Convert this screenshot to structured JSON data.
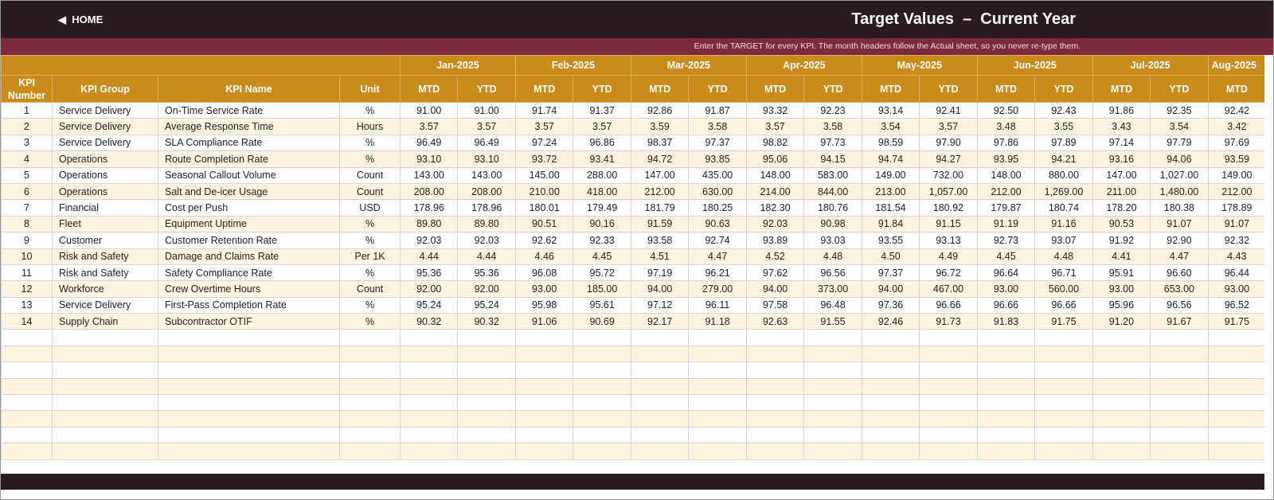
{
  "header": {
    "home": "HOME",
    "title": "Target Values  –  Current Year",
    "subtitle": "Enter the TARGET for every KPI. The month headers follow the Actual sheet, so you never re-type them."
  },
  "table": {
    "months": [
      "Jan-2025",
      "Feb-2025",
      "Mar-2025",
      "Apr-2025",
      "May-2025",
      "Jun-2025",
      "Jul-2025",
      "Aug-2025"
    ],
    "columns": [
      "KPI Number",
      "KPI Group",
      "KPI Name",
      "Unit"
    ],
    "subheaders": [
      "MTD",
      "YTD",
      "MTD",
      "YTD",
      "MTD",
      "YTD",
      "MTD",
      "YTD",
      "MTD",
      "YTD",
      "MTD",
      "YTD",
      "MTD",
      "YTD",
      "MTD"
    ],
    "rows": [
      [
        "1",
        "Service Delivery",
        "On-Time Service Rate",
        "%",
        "91.00",
        "91.00",
        "91.74",
        "91.37",
        "92.86",
        "91.87",
        "93.32",
        "92.23",
        "93.14",
        "92.41",
        "92.50",
        "92.43",
        "91.86",
        "92.35",
        "92.42"
      ],
      [
        "2",
        "Service Delivery",
        "Average Response Time",
        "Hours",
        "3.57",
        "3.57",
        "3.57",
        "3.57",
        "3.59",
        "3.58",
        "3.57",
        "3.58",
        "3.54",
        "3.57",
        "3.48",
        "3.55",
        "3.43",
        "3.54",
        "3.42"
      ],
      [
        "3",
        "Service Delivery",
        "SLA Compliance Rate",
        "%",
        "96.49",
        "96.49",
        "97.24",
        "96.86",
        "98.37",
        "97.37",
        "98.82",
        "97.73",
        "98.59",
        "97.90",
        "97.86",
        "97.89",
        "97.14",
        "97.79",
        "97.69"
      ],
      [
        "4",
        "Operations",
        "Route Completion Rate",
        "%",
        "93.10",
        "93.10",
        "93.72",
        "93.41",
        "94.72",
        "93.85",
        "95.06",
        "94.15",
        "94.74",
        "94.27",
        "93.95",
        "94.21",
        "93.16",
        "94.06",
        "93.59"
      ],
      [
        "5",
        "Operations",
        "Seasonal Callout Volume",
        "Count",
        "143.00",
        "143.00",
        "145.00",
        "288.00",
        "147.00",
        "435.00",
        "148.00",
        "583.00",
        "149.00",
        "732.00",
        "148.00",
        "880.00",
        "147.00",
        "1,027.00",
        "149.00"
      ],
      [
        "6",
        "Operations",
        "Salt and De-icer Usage",
        "Count",
        "208.00",
        "208.00",
        "210.00",
        "418.00",
        "212.00",
        "630.00",
        "214.00",
        "844.00",
        "213.00",
        "1,057.00",
        "212.00",
        "1,269.00",
        "211.00",
        "1,480.00",
        "212.00"
      ],
      [
        "7",
        "Financial",
        "Cost per Push",
        "USD",
        "178.96",
        "178.96",
        "180.01",
        "179.49",
        "181.79",
        "180.25",
        "182.30",
        "180.76",
        "181.54",
        "180.92",
        "179.87",
        "180.74",
        "178.20",
        "180.38",
        "178.89"
      ],
      [
        "8",
        "Fleet",
        "Equipment Uptime",
        "%",
        "89.80",
        "89.80",
        "90.51",
        "90.16",
        "91.59",
        "90.63",
        "92.03",
        "90.98",
        "91.84",
        "91.15",
        "91.19",
        "91.16",
        "90.53",
        "91.07",
        "91.07"
      ],
      [
        "9",
        "Customer",
        "Customer Retention Rate",
        "%",
        "92.03",
        "92.03",
        "92.62",
        "92.33",
        "93.58",
        "92.74",
        "93.89",
        "93.03",
        "93.55",
        "93.13",
        "92.73",
        "93.07",
        "91.92",
        "92.90",
        "92.32"
      ],
      [
        "10",
        "Risk and Safety",
        "Damage and Claims Rate",
        "Per 1K",
        "4.44",
        "4.44",
        "4.46",
        "4.45",
        "4.51",
        "4.47",
        "4.52",
        "4.48",
        "4.50",
        "4.49",
        "4.45",
        "4.48",
        "4.41",
        "4.47",
        "4.43"
      ],
      [
        "11",
        "Risk and Safety",
        "Safety Compliance Rate",
        "%",
        "95.36",
        "95.36",
        "96.08",
        "95.72",
        "97.19",
        "96.21",
        "97.62",
        "96.56",
        "97.37",
        "96.72",
        "96.64",
        "96.71",
        "95.91",
        "96.60",
        "96.44"
      ],
      [
        "12",
        "Workforce",
        "Crew Overtime Hours",
        "Count",
        "92.00",
        "92.00",
        "93.00",
        "185.00",
        "94.00",
        "279.00",
        "94.00",
        "373.00",
        "94.00",
        "467.00",
        "93.00",
        "560.00",
        "93.00",
        "653.00",
        "93.00"
      ],
      [
        "13",
        "Service Delivery",
        "First-Pass Completion Rate",
        "%",
        "95.24",
        "95.24",
        "95.98",
        "95.61",
        "97.12",
        "96.11",
        "97.58",
        "96.48",
        "97.36",
        "96.66",
        "96.66",
        "96.66",
        "95.96",
        "96.56",
        "96.52"
      ],
      [
        "14",
        "Supply Chain",
        "Subcontractor OTIF",
        "%",
        "90.32",
        "90.32",
        "91.06",
        "90.69",
        "92.17",
        "91.18",
        "92.63",
        "91.55",
        "92.46",
        "91.73",
        "91.83",
        "91.75",
        "91.20",
        "91.67",
        "91.75"
      ]
    ]
  }
}
